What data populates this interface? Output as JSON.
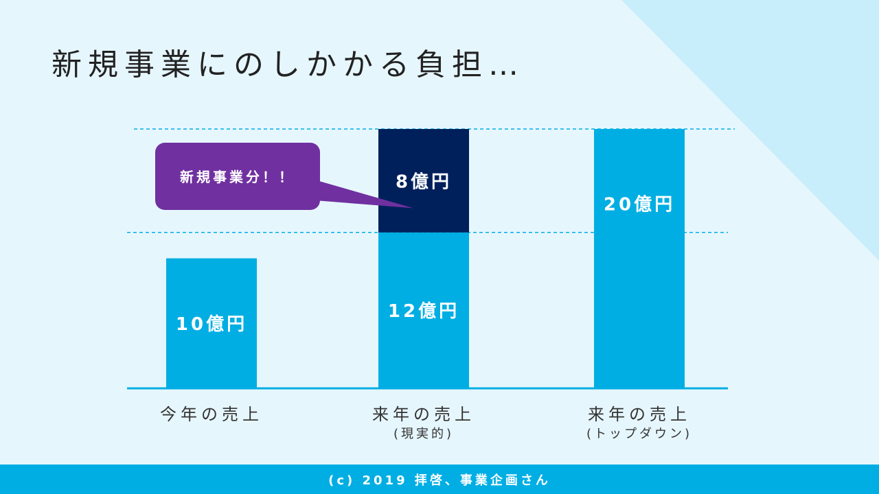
{
  "title": "新規事業にのしかかる負担…",
  "footer": "(c) 2019 拝啓、事業企画さん",
  "colors": {
    "background": "#e6f6fd",
    "triangle": "#c9eefb",
    "bar": "#00aee3",
    "new_business": "#00205b",
    "callout": "#7030a0",
    "footer": "#00aee3"
  },
  "chart_data": {
    "type": "bar",
    "stacked": true,
    "unit": "億円",
    "categories": [
      {
        "label": "今年の売上",
        "sub": ""
      },
      {
        "label": "来年の売上",
        "sub": "(現実的)"
      },
      {
        "label": "来年の売上",
        "sub": "(トップダウン)"
      }
    ],
    "series": [
      {
        "key": "base",
        "color": "#00aee3",
        "values": [
          10,
          12,
          20
        ],
        "labels": [
          "10億円",
          "12億円",
          "20億円"
        ]
      },
      {
        "key": "new_business",
        "color": "#00205b",
        "values": [
          0,
          8,
          0
        ],
        "labels": [
          "",
          "8億円",
          ""
        ]
      }
    ],
    "reference_lines": [
      12,
      20
    ],
    "ylim": [
      0,
      20
    ],
    "callout": {
      "text": "新規事業分！！",
      "series": "new_business",
      "category_index": 1
    }
  }
}
